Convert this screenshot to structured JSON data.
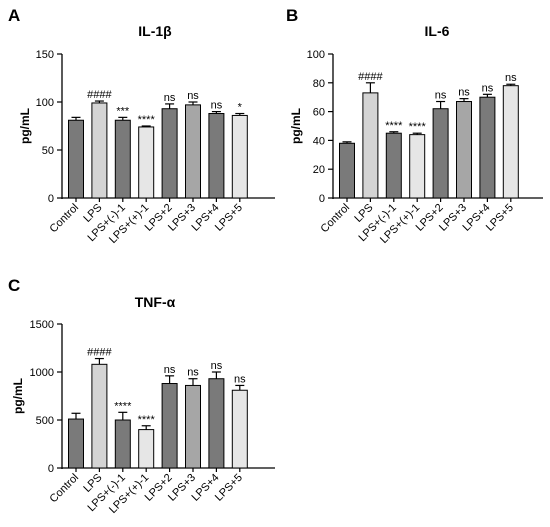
{
  "chart_data": [
    {
      "type": "bar",
      "panel_label": "A",
      "title": "IL-1β",
      "ylabel": "pg/mL",
      "ylim": [
        0,
        150
      ],
      "yticks": [
        0,
        50,
        100,
        150
      ],
      "categories": [
        "Control",
        "LPS",
        "LPS+(-)-1",
        "LPS+(+)-1",
        "LPS+2",
        "LPS+3",
        "LPS+4",
        "LPS+5"
      ],
      "values": [
        81,
        99,
        81,
        74,
        93,
        97,
        88,
        86
      ],
      "errors": [
        3,
        2,
        3,
        1,
        5,
        3,
        2,
        2
      ],
      "significance": [
        "",
        "####",
        "***",
        "****",
        "ns",
        "ns",
        "ns",
        "*"
      ],
      "bar_colors": [
        "#7a7a7a",
        "#d4d4d4",
        "#7a7a7a",
        "#e6e6e6",
        "#7a7a7a",
        "#a6a6a6",
        "#7a7a7a",
        "#e6e6e6"
      ]
    },
    {
      "type": "bar",
      "panel_label": "B",
      "title": "IL-6",
      "ylabel": "pg/mL",
      "ylim": [
        0,
        100
      ],
      "yticks": [
        0,
        20,
        40,
        60,
        80,
        100
      ],
      "categories": [
        "Control",
        "LPS",
        "LPS+(-)-1",
        "LPS+(+)-1",
        "LPS+2",
        "LPS+3",
        "LPS+4",
        "LPS+5"
      ],
      "values": [
        38,
        73,
        45,
        44,
        62,
        67,
        70,
        78
      ],
      "errors": [
        1,
        7,
        1,
        1,
        5,
        2,
        2,
        1
      ],
      "significance": [
        "",
        "####",
        "****",
        "****",
        "ns",
        "ns",
        "ns",
        "ns"
      ],
      "bar_colors": [
        "#7a7a7a",
        "#d4d4d4",
        "#7a7a7a",
        "#e6e6e6",
        "#7a7a7a",
        "#a6a6a6",
        "#7a7a7a",
        "#e6e6e6"
      ]
    },
    {
      "type": "bar",
      "panel_label": "C",
      "title": "TNF-α",
      "ylabel": "pg/mL",
      "ylim": [
        0,
        1500
      ],
      "yticks": [
        0,
        500,
        1000,
        1500
      ],
      "categories": [
        "Control",
        "LPS",
        "LPS+(-)-1",
        "LPS+(+)-1",
        "LPS+2",
        "LPS+3",
        "LPS+4",
        "LPS+5"
      ],
      "values": [
        510,
        1080,
        500,
        400,
        880,
        860,
        930,
        810
      ],
      "errors": [
        60,
        60,
        80,
        40,
        80,
        70,
        70,
        50
      ],
      "significance": [
        "",
        "####",
        "****",
        "****",
        "ns",
        "ns",
        "ns",
        "ns"
      ],
      "bar_colors": [
        "#7a7a7a",
        "#d4d4d4",
        "#7a7a7a",
        "#e6e6e6",
        "#7a7a7a",
        "#a6a6a6",
        "#7a7a7a",
        "#e6e6e6"
      ]
    }
  ]
}
